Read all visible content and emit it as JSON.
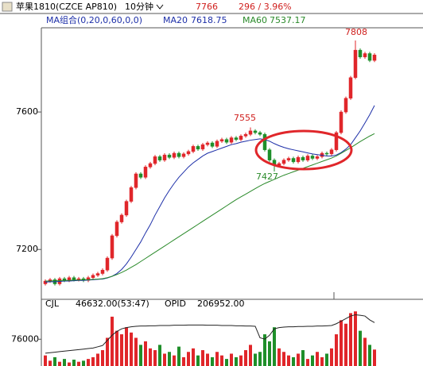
{
  "chart_data": {
    "type": "candlestick",
    "title": "苹果1810(CZCE AP810)",
    "period": "10分钟",
    "last_price": "7766",
    "change": "296 / 3.96%",
    "ma_label": "MA组合(0,20,0,60,0,0)",
    "ylim": [
      7055,
      7845
    ],
    "yticks": [
      7200,
      7600
    ],
    "up_color": "#e0262a",
    "down_color": "#1f8f2a",
    "candles": {
      "open": [
        7100,
        7108,
        7112,
        7100,
        7115,
        7110,
        7118,
        7112,
        7115,
        7110,
        7118,
        7125,
        7130,
        7140,
        7175,
        7240,
        7280,
        7300,
        7340,
        7380,
        7420,
        7410,
        7440,
        7450,
        7470,
        7460,
        7475,
        7468,
        7480,
        7470,
        7478,
        7485,
        7500,
        7492,
        7505,
        7510,
        7500,
        7515,
        7520,
        7512,
        7525,
        7520,
        7530,
        7535,
        7545,
        7540,
        7535,
        7490,
        7460,
        7445,
        7450,
        7460,
        7465,
        7455,
        7468,
        7460,
        7472,
        7465,
        7470,
        7480,
        7478,
        7490,
        7540,
        7600,
        7640,
        7700,
        7780,
        7760,
        7770,
        7750
      ],
      "high": [
        7113,
        7117,
        7117,
        7120,
        7120,
        7123,
        7123,
        7120,
        7120,
        7123,
        7130,
        7135,
        7145,
        7180,
        7245,
        7285,
        7305,
        7345,
        7385,
        7425,
        7425,
        7445,
        7455,
        7475,
        7475,
        7480,
        7480,
        7485,
        7485,
        7483,
        7490,
        7505,
        7505,
        7510,
        7515,
        7515,
        7520,
        7525,
        7525,
        7530,
        7530,
        7535,
        7540,
        7555,
        7550,
        7545,
        7540,
        7495,
        7465,
        7455,
        7465,
        7470,
        7470,
        7473,
        7473,
        7477,
        7477,
        7475,
        7485,
        7485,
        7495,
        7545,
        7605,
        7645,
        7705,
        7808,
        7785,
        7775,
        7775,
        7771
      ],
      "low": [
        7095,
        7103,
        7095,
        7095,
        7105,
        7105,
        7107,
        7107,
        7105,
        7105,
        7113,
        7120,
        7125,
        7135,
        7170,
        7235,
        7275,
        7295,
        7335,
        7375,
        7405,
        7405,
        7435,
        7445,
        7455,
        7455,
        7463,
        7463,
        7465,
        7465,
        7473,
        7480,
        7487,
        7487,
        7500,
        7495,
        7495,
        7510,
        7507,
        7507,
        7515,
        7515,
        7525,
        7530,
        7535,
        7530,
        7485,
        7455,
        7427,
        7440,
        7445,
        7455,
        7450,
        7450,
        7455,
        7455,
        7460,
        7460,
        7465,
        7473,
        7473,
        7485,
        7535,
        7595,
        7635,
        7695,
        7755,
        7755,
        7745,
        7745
      ],
      "close": [
        7108,
        7112,
        7100,
        7115,
        7110,
        7118,
        7112,
        7115,
        7110,
        7118,
        7125,
        7130,
        7140,
        7175,
        7240,
        7280,
        7300,
        7340,
        7380,
        7420,
        7410,
        7440,
        7450,
        7470,
        7460,
        7475,
        7468,
        7480,
        7470,
        7478,
        7485,
        7500,
        7492,
        7505,
        7510,
        7500,
        7515,
        7520,
        7512,
        7525,
        7520,
        7530,
        7535,
        7545,
        7540,
        7535,
        7490,
        7460,
        7445,
        7450,
        7460,
        7465,
        7455,
        7468,
        7460,
        7472,
        7465,
        7470,
        7480,
        7478,
        7490,
        7540,
        7600,
        7640,
        7700,
        7780,
        7760,
        7770,
        7750,
        7766
      ]
    },
    "series": [
      {
        "name": "MA20",
        "last_label": "7618.75",
        "color": "#1d2fa8",
        "values": [
          7105,
          7106,
          7106,
          7107,
          7108,
          7108,
          7109,
          7110,
          7110,
          7111,
          7112,
          7113,
          7114,
          7117,
          7122,
          7130,
          7142,
          7158,
          7178,
          7200,
          7222,
          7248,
          7272,
          7300,
          7325,
          7350,
          7372,
          7392,
          7410,
          7425,
          7440,
          7452,
          7462,
          7472,
          7480,
          7485,
          7490,
          7495,
          7500,
          7505,
          7508,
          7512,
          7515,
          7518,
          7520,
          7522,
          7520,
          7515,
          7508,
          7502,
          7497,
          7493,
          7490,
          7487,
          7484,
          7481,
          7478,
          7476,
          7474,
          7472,
          7472,
          7475,
          7482,
          7492,
          7505,
          7525,
          7545,
          7568,
          7592,
          7619
        ]
      },
      {
        "name": "MA60",
        "last_label": "7537.17",
        "color": "#2a8a2a",
        "values": [
          7108,
          7108,
          7109,
          7109,
          7110,
          7110,
          7111,
          7111,
          7112,
          7112,
          7113,
          7114,
          7115,
          7118,
          7122,
          7127,
          7133,
          7140,
          7148,
          7156,
          7165,
          7174,
          7183,
          7192,
          7201,
          7210,
          7219,
          7228,
          7237,
          7246,
          7255,
          7264,
          7273,
          7282,
          7291,
          7300,
          7309,
          7318,
          7327,
          7336,
          7345,
          7353,
          7361,
          7369,
          7377,
          7385,
          7392,
          7398,
          7404,
          7410,
          7416,
          7421,
          7426,
          7431,
          7436,
          7441,
          7446,
          7451,
          7456,
          7461,
          7466,
          7472,
          7480,
          7488,
          7496,
          7505,
          7514,
          7522,
          7530,
          7537
        ]
      }
    ],
    "annotations": [
      "7808",
      "7555",
      "7427"
    ],
    "volume": {
      "name": "CJL",
      "last_label": "46632.00(53:47)",
      "ylim": [
        0,
        160000
      ],
      "yticks": [
        76000
      ],
      "values": [
        30000,
        15000,
        25000,
        12000,
        20000,
        10000,
        18000,
        12000,
        15000,
        20000,
        25000,
        35000,
        45000,
        80000,
        140000,
        100000,
        90000,
        110000,
        95000,
        80000,
        60000,
        70000,
        50000,
        45000,
        60000,
        35000,
        40000,
        30000,
        55000,
        25000,
        40000,
        50000,
        30000,
        45000,
        35000,
        25000,
        40000,
        30000,
        20000,
        35000,
        25000,
        30000,
        45000,
        60000,
        35000,
        40000,
        90000,
        70000,
        110000,
        50000,
        40000,
        30000,
        25000,
        35000,
        45000,
        20000,
        30000,
        40000,
        25000,
        35000,
        50000,
        90000,
        130000,
        120000,
        150000,
        155000,
        100000,
        80000,
        60000,
        46632
      ]
    },
    "opid": {
      "name": "OPID",
      "last_label": "206952.00",
      "color": "#222",
      "y2lim": [
        190000,
        212000
      ],
      "values": [
        195000,
        195200,
        195400,
        195600,
        195800,
        196000,
        196200,
        196400,
        196600,
        196800,
        197000,
        197500,
        198000,
        200000,
        202000,
        203500,
        204500,
        205000,
        205300,
        205500,
        205600,
        205600,
        205700,
        205700,
        205800,
        205800,
        205800,
        205900,
        205900,
        205900,
        206000,
        206000,
        206000,
        206000,
        205900,
        205900,
        205900,
        205800,
        205800,
        205800,
        205700,
        205700,
        205600,
        205600,
        205500,
        201000,
        200500,
        202000,
        204500,
        205000,
        205200,
        205300,
        205300,
        205400,
        205400,
        205500,
        205500,
        205600,
        205600,
        205700,
        205800,
        206500,
        207500,
        208500,
        209500,
        210000,
        209800,
        209500,
        208000,
        206952
      ]
    }
  }
}
